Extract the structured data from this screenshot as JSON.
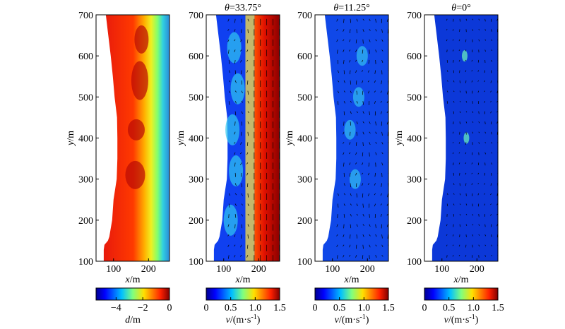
{
  "chart_data": [
    {
      "type": "heatmap",
      "title": "",
      "xlabel": "x/m",
      "ylabel": "y/m",
      "xlim": [
        50,
        260
      ],
      "ylim": [
        100,
        700
      ],
      "xticks": [
        100,
        200
      ],
      "yticks": [
        100,
        200,
        300,
        400,
        500,
        600,
        700
      ],
      "colorbar": {
        "label": "d/m",
        "range": [
          -5.5,
          0
        ],
        "ticks": [
          -4,
          -2,
          0
        ]
      },
      "quiver": false
    },
    {
      "type": "heatmap",
      "title": "θ=33.75°",
      "xlabel": "x/m",
      "ylabel": "y/m",
      "xlim": [
        50,
        260
      ],
      "ylim": [
        100,
        700
      ],
      "xticks": [
        100,
        200
      ],
      "yticks": [
        100,
        200,
        300,
        400,
        500,
        600,
        700
      ],
      "colorbar": {
        "label": "v/(m·s⁻¹)",
        "range": [
          0,
          1.5
        ],
        "ticks": [
          "0",
          "0.5",
          "1.0",
          "1.5"
        ]
      },
      "quiver": true
    },
    {
      "type": "heatmap",
      "title": "θ=11.25°",
      "xlabel": "x/m",
      "ylabel": "y/m",
      "xlim": [
        50,
        260
      ],
      "ylim": [
        100,
        700
      ],
      "xticks": [
        100,
        200
      ],
      "yticks": [
        100,
        200,
        300,
        400,
        500,
        600,
        700
      ],
      "colorbar": {
        "label": "v/(m·s⁻¹)",
        "range": [
          0,
          1.5
        ],
        "ticks": [
          "0",
          "0.5",
          "1.0",
          "1.5"
        ]
      },
      "quiver": true
    },
    {
      "type": "heatmap",
      "title": "θ=0°",
      "xlabel": "x/m",
      "ylabel": "y/m",
      "xlim": [
        50,
        260
      ],
      "ylim": [
        100,
        700
      ],
      "xticks": [
        100,
        200
      ],
      "yticks": [
        100,
        200,
        300,
        400,
        500,
        600,
        700
      ],
      "colorbar": {
        "label": "v/(m·s⁻¹)",
        "range": [
          0,
          1.5
        ],
        "ticks": [
          "0",
          "0.5",
          "1.0",
          "1.5"
        ]
      },
      "quiver": true
    }
  ],
  "colors": {
    "jet_low": "#000090",
    "jet_mid": "#7fff7f",
    "jet_high": "#7f0000",
    "arrow": "#000000"
  }
}
